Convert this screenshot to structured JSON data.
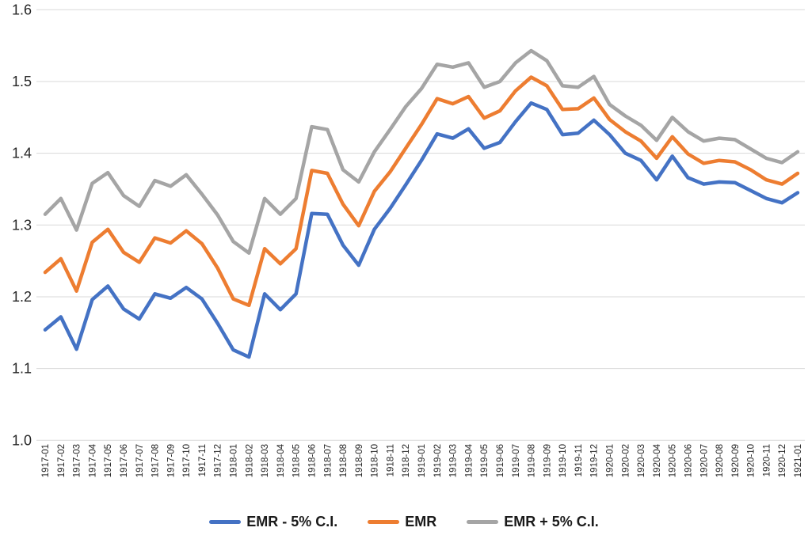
{
  "chart_data": {
    "type": "line",
    "title": "",
    "xlabel": "",
    "ylabel": "",
    "grid": true,
    "gridline_color": "#d9d9d9",
    "text_color": "#262626",
    "legend_position": "bottom",
    "y_axis": {
      "min": 1.0,
      "max": 1.6,
      "step": 0.1,
      "tick_labels": [
        "1.0",
        "1.1",
        "1.2",
        "1.3",
        "1.4",
        "1.5",
        "1.6"
      ]
    },
    "x_categories": [
      "1917-01",
      "1917-02",
      "1917-03",
      "1917-04",
      "1917-05",
      "1917-06",
      "1917-07",
      "1917-08",
      "1917-09",
      "1917-10",
      "1917-11",
      "1917-12",
      "1918-01",
      "1918-02",
      "1918-03",
      "1918-04",
      "1918-05",
      "1918-06",
      "1918-07",
      "1918-08",
      "1918-09",
      "1918-10",
      "1918-11",
      "1918-12",
      "1919-01",
      "1919-02",
      "1919-03",
      "1919-04",
      "1919-05",
      "1919-06",
      "1919-07",
      "1919-08",
      "1919-09",
      "1919-10",
      "1919-11",
      "1919-12",
      "1920-01",
      "1920-02",
      "1920-03",
      "1920-04",
      "1920-05",
      "1920-06",
      "1920-07",
      "1920-08",
      "1920-09",
      "1920-10",
      "1920-11",
      "1920-12",
      "1921-01"
    ],
    "series": [
      {
        "name": "EMR - 5% C.I.",
        "color": "#4472C4",
        "values": [
          1.154,
          1.172,
          1.127,
          1.196,
          1.215,
          1.183,
          1.169,
          1.204,
          1.198,
          1.213,
          1.197,
          1.163,
          1.126,
          1.116,
          1.204,
          1.182,
          1.204,
          1.316,
          1.315,
          1.272,
          1.244,
          1.294,
          1.323,
          1.356,
          1.39,
          1.427,
          1.421,
          1.434,
          1.407,
          1.415,
          1.444,
          1.47,
          1.461,
          1.426,
          1.428,
          1.446,
          1.426,
          1.4,
          1.39,
          1.363,
          1.396,
          1.366,
          1.357,
          1.36,
          1.359,
          1.348,
          1.337,
          1.331,
          1.345
        ]
      },
      {
        "name": "EMR",
        "color": "#ED7D31",
        "values": [
          1.234,
          1.253,
          1.208,
          1.276,
          1.294,
          1.262,
          1.248,
          1.282,
          1.275,
          1.292,
          1.274,
          1.24,
          1.197,
          1.188,
          1.267,
          1.246,
          1.267,
          1.376,
          1.372,
          1.329,
          1.299,
          1.347,
          1.374,
          1.407,
          1.44,
          1.476,
          1.469,
          1.479,
          1.449,
          1.459,
          1.487,
          1.506,
          1.494,
          1.461,
          1.462,
          1.477,
          1.447,
          1.43,
          1.417,
          1.393,
          1.423,
          1.399,
          1.386,
          1.39,
          1.388,
          1.377,
          1.363,
          1.357,
          1.372
        ]
      },
      {
        "name": "EMR + 5% C.I.",
        "color": "#A5A5A5",
        "values": [
          1.315,
          1.337,
          1.293,
          1.358,
          1.373,
          1.341,
          1.326,
          1.362,
          1.354,
          1.37,
          1.343,
          1.314,
          1.277,
          1.261,
          1.337,
          1.315,
          1.337,
          1.437,
          1.433,
          1.377,
          1.36,
          1.402,
          1.433,
          1.465,
          1.49,
          1.524,
          1.52,
          1.526,
          1.492,
          1.5,
          1.526,
          1.543,
          1.529,
          1.494,
          1.492,
          1.507,
          1.468,
          1.452,
          1.439,
          1.418,
          1.45,
          1.43,
          1.417,
          1.421,
          1.419,
          1.406,
          1.393,
          1.387,
          1.402
        ]
      }
    ]
  }
}
